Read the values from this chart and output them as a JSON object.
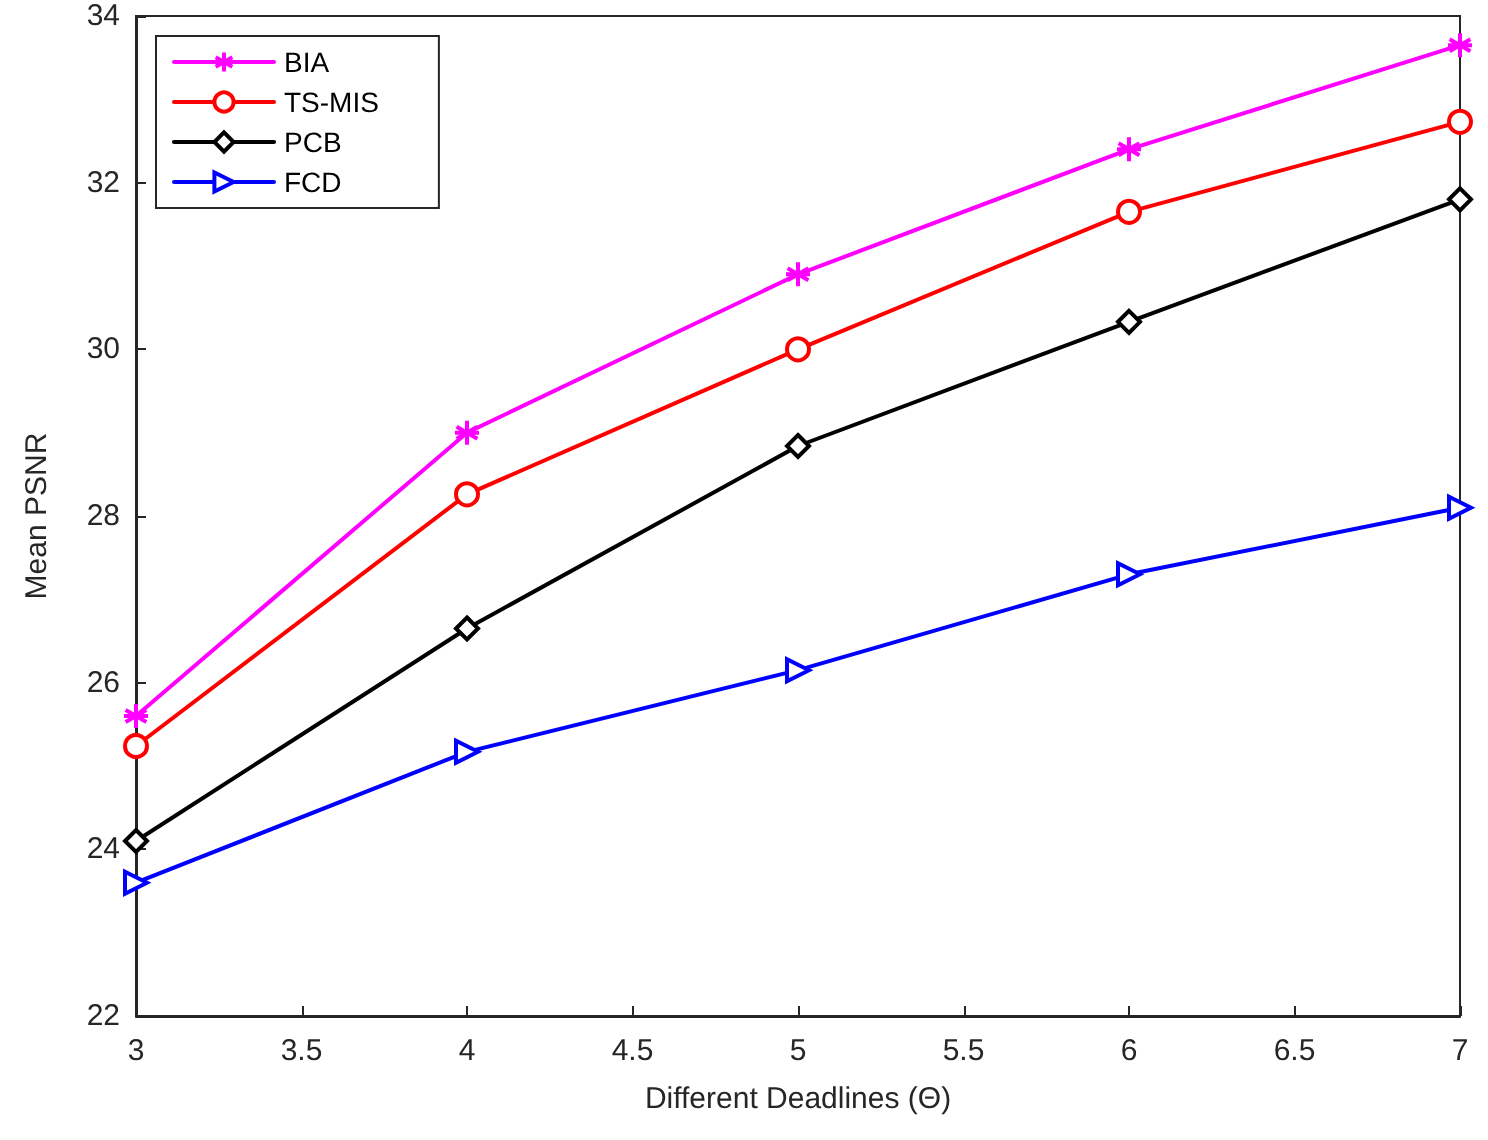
{
  "chart_data": {
    "type": "line",
    "xlabel": "Different Deadlines (Θ)",
    "ylabel": "Mean PSNR",
    "x": [
      3,
      4,
      5,
      6,
      7
    ],
    "xlim": [
      3,
      7
    ],
    "xticks": [
      3,
      3.5,
      4,
      4.5,
      5,
      5.5,
      6,
      6.5,
      7
    ],
    "ylim": [
      22,
      34
    ],
    "yticks": [
      22,
      24,
      26,
      28,
      30,
      32,
      34
    ],
    "grid": false,
    "legend": "top left",
    "line_style": "solid",
    "series": [
      {
        "name": "BIA",
        "color": "#ff00ff",
        "marker": "cross",
        "values": [
          25.6,
          29.0,
          30.9,
          32.4,
          33.65
        ]
      },
      {
        "name": "TS-MIS",
        "color": "#ff0000",
        "marker": "circle",
        "values": [
          25.24,
          28.26,
          30.0,
          31.65,
          32.73
        ]
      },
      {
        "name": "PCB",
        "color": "#000000",
        "marker": "diamond",
        "values": [
          24.1,
          26.65,
          28.84,
          30.33,
          31.8
        ]
      },
      {
        "name": "FCD",
        "color": "#0000ff",
        "marker": "triangle",
        "values": [
          23.6,
          25.17,
          26.15,
          27.3,
          28.1
        ]
      }
    ]
  }
}
